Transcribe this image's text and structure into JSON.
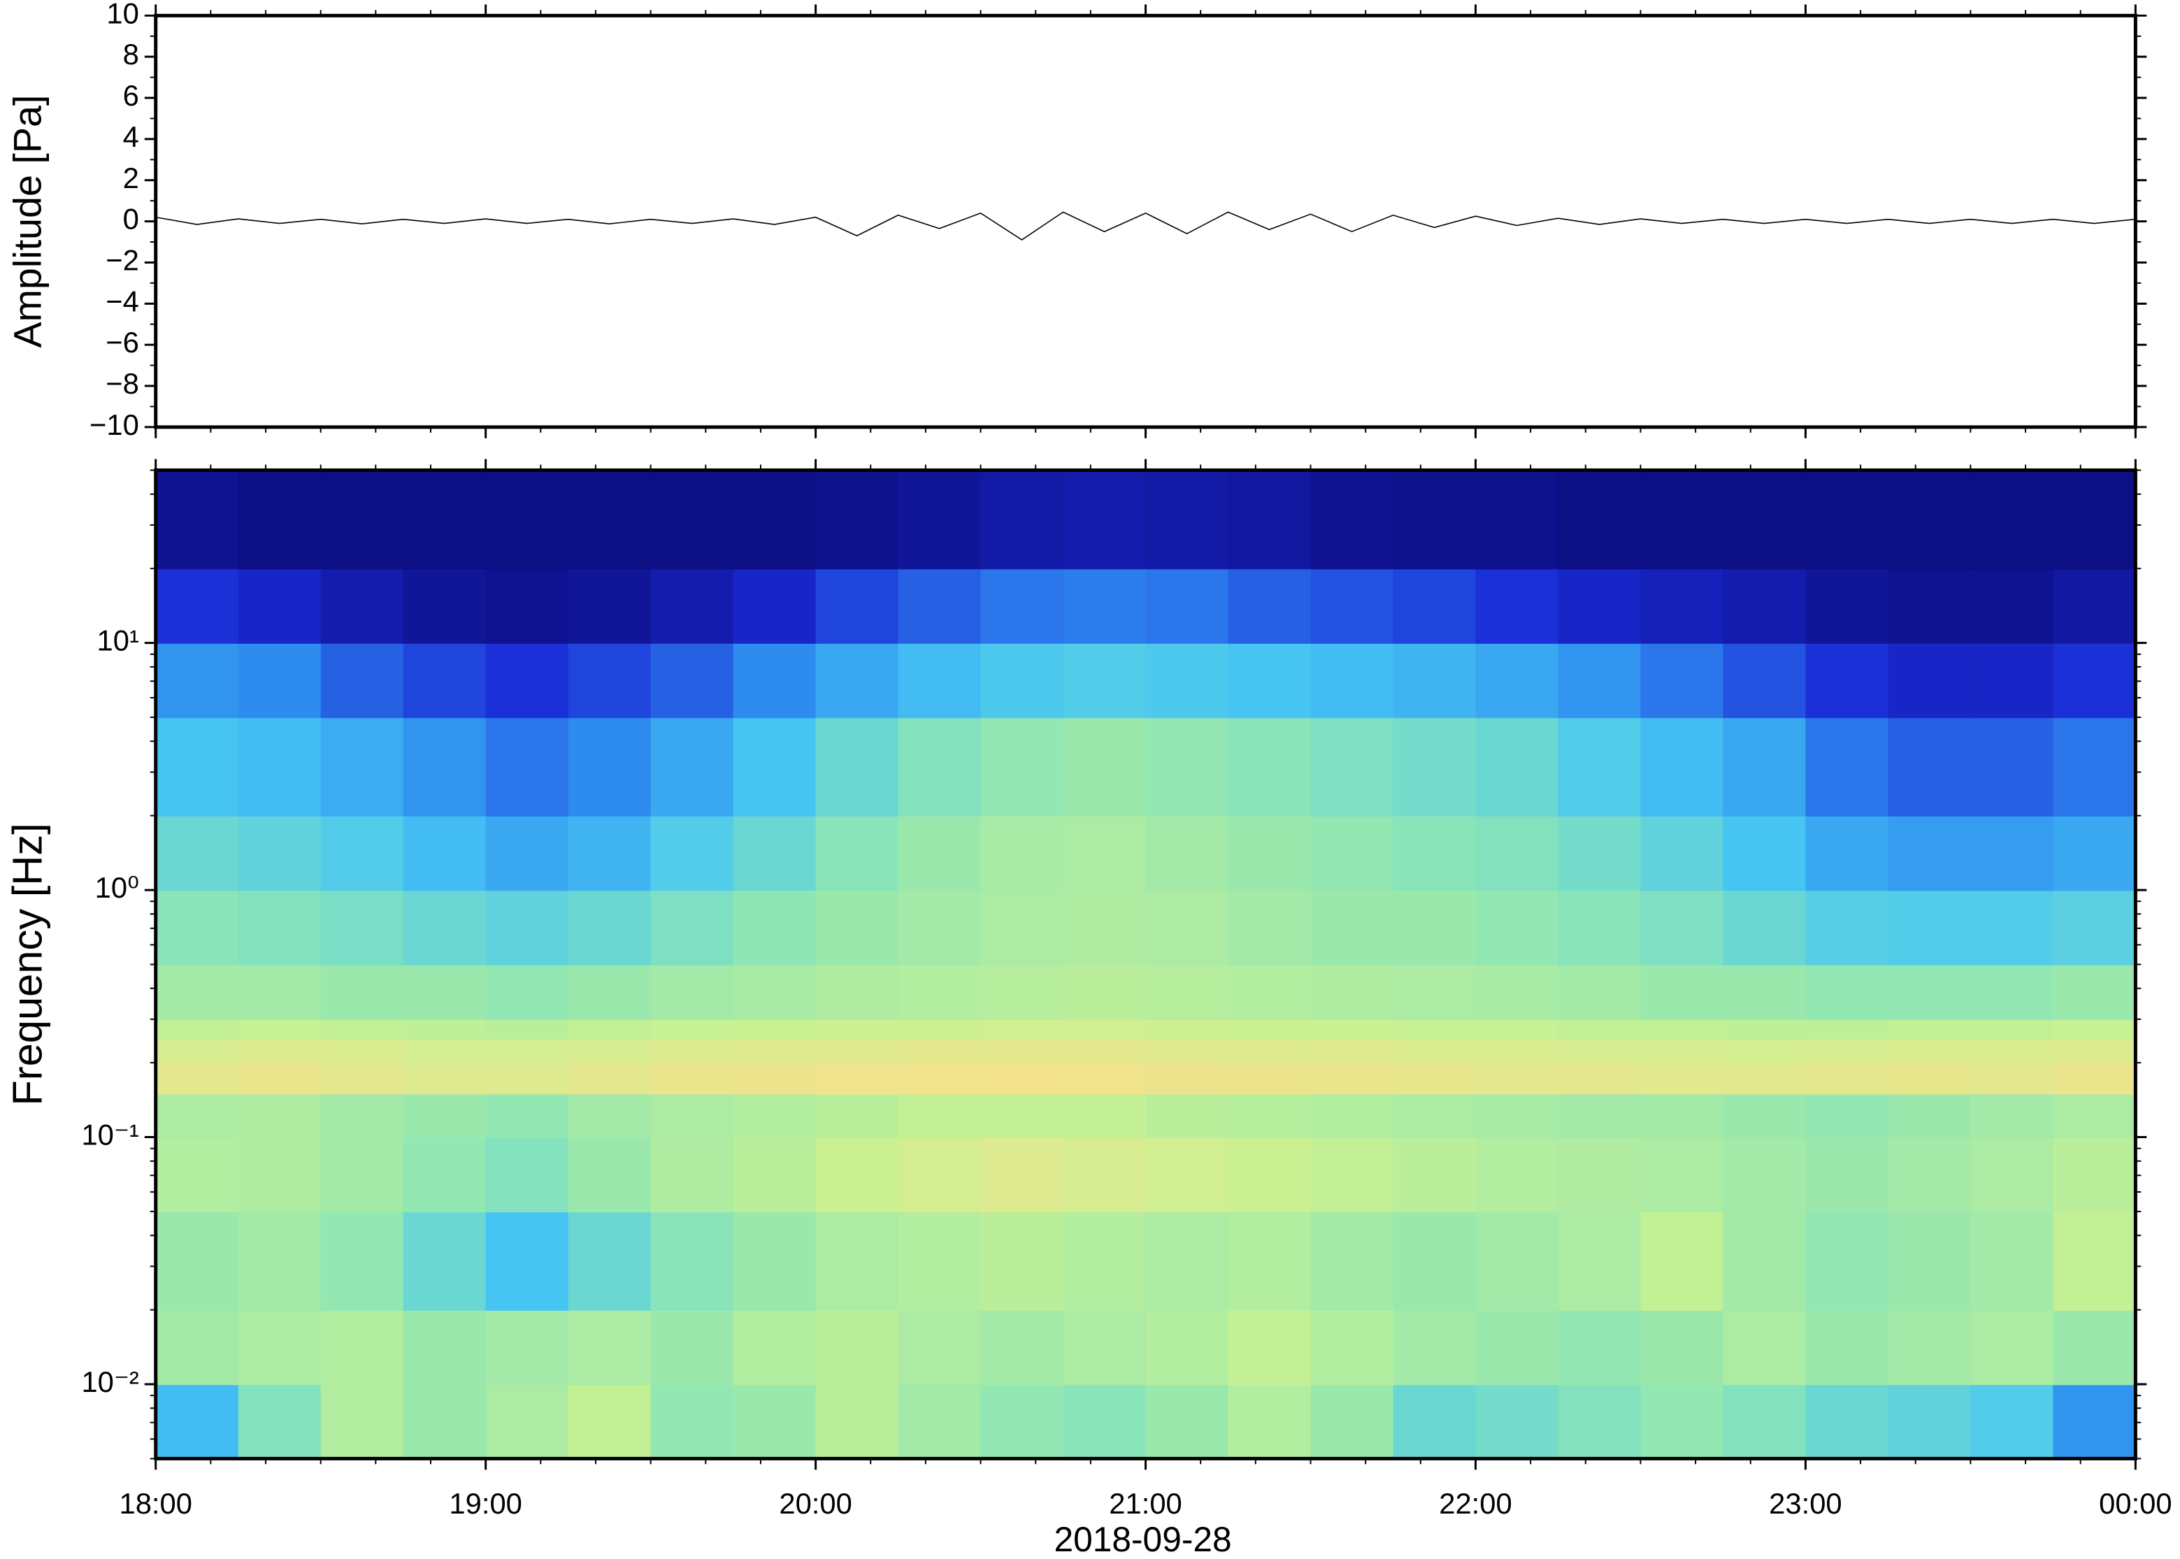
{
  "chart_data": [
    {
      "type": "line",
      "ylabel": "Amplitude [Pa]",
      "color": "#000000",
      "x": [
        18,
        18.125,
        18.25,
        18.375,
        18.5,
        18.625,
        18.75,
        18.875,
        19,
        19.125,
        19.25,
        19.375,
        19.5,
        19.625,
        19.75,
        19.875,
        20,
        20.125,
        20.25,
        20.375,
        20.5,
        20.625,
        20.75,
        20.875,
        21,
        21.125,
        21.25,
        21.375,
        21.5,
        21.625,
        21.75,
        21.875,
        22,
        22.125,
        22.25,
        22.375,
        22.5,
        22.625,
        22.75,
        22.875,
        23,
        23.125,
        23.25,
        23.375,
        23.5,
        23.625,
        23.75,
        23.875,
        24
      ],
      "values": [
        0.2,
        -0.15,
        0.12,
        -0.1,
        0.1,
        -0.12,
        0.1,
        -0.1,
        0.12,
        -0.1,
        0.1,
        -0.12,
        0.1,
        -0.1,
        0.12,
        -0.15,
        0.2,
        -0.7,
        0.3,
        -0.35,
        0.4,
        -0.9,
        0.45,
        -0.5,
        0.4,
        -0.6,
        0.45,
        -0.4,
        0.35,
        -0.5,
        0.3,
        -0.3,
        0.25,
        -0.2,
        0.15,
        -0.15,
        0.12,
        -0.1,
        0.1,
        -0.1,
        0.1,
        -0.1,
        0.1,
        -0.1,
        0.1,
        -0.1,
        0.1,
        -0.1,
        0.1
      ],
      "xlim": [
        18,
        24
      ],
      "xticks": [
        18,
        19,
        20,
        21,
        22,
        23,
        24
      ],
      "ylim": [
        -10,
        10
      ],
      "yticks": [
        {
          "value": -10,
          "label": "−10"
        },
        {
          "value": -8,
          "label": "−8"
        },
        {
          "value": -6,
          "label": "−6"
        },
        {
          "value": -4,
          "label": "−4"
        },
        {
          "value": -2,
          "label": "−2"
        },
        0,
        2,
        4,
        6,
        8,
        10
      ]
    },
    {
      "type": "heatmap",
      "ylabel": "Frequency [Hz]",
      "xlabel": "2018-09-28",
      "log_y": true,
      "x_bins": [
        18,
        18.25,
        18.5,
        18.75,
        19,
        19.25,
        19.5,
        19.75,
        20,
        20.25,
        20.5,
        20.75,
        21,
        21.25,
        21.5,
        21.75,
        22,
        22.25,
        22.5,
        22.75,
        23,
        23.25,
        23.5,
        23.75,
        24
      ],
      "y_bins": [
        0.005,
        0.01,
        0.02,
        0.05,
        0.1,
        0.15,
        0.2,
        0.25,
        0.3,
        0.5,
        1,
        2,
        5,
        10,
        20,
        50
      ],
      "clim": [
        0,
        1
      ],
      "colormap": [
        "#0b0a78",
        "#1b2bd6",
        "#2f8ff0",
        "#47c7f2",
        "#8fe6b4",
        "#c9f192",
        "#f4e18b",
        "#f6a65e"
      ],
      "values": [
        [
          0.4,
          0.55,
          0.66,
          0.6,
          0.64,
          0.7,
          0.58,
          0.6,
          0.68,
          0.62,
          0.58,
          0.56,
          0.6,
          0.66,
          0.6,
          0.5,
          0.52,
          0.55,
          0.58,
          0.55,
          0.5,
          0.48,
          0.45,
          0.3
        ],
        [
          0.62,
          0.64,
          0.66,
          0.6,
          0.62,
          0.64,
          0.6,
          0.66,
          0.68,
          0.64,
          0.62,
          0.64,
          0.66,
          0.7,
          0.66,
          0.62,
          0.6,
          0.58,
          0.6,
          0.64,
          0.6,
          0.62,
          0.64,
          0.6
        ],
        [
          0.6,
          0.62,
          0.58,
          0.5,
          0.42,
          0.5,
          0.56,
          0.6,
          0.64,
          0.66,
          0.68,
          0.66,
          0.64,
          0.66,
          0.62,
          0.6,
          0.62,
          0.64,
          0.7,
          0.62,
          0.58,
          0.6,
          0.62,
          0.7
        ],
        [
          0.66,
          0.65,
          0.62,
          0.58,
          0.55,
          0.6,
          0.65,
          0.68,
          0.72,
          0.75,
          0.78,
          0.76,
          0.74,
          0.72,
          0.7,
          0.68,
          0.66,
          0.65,
          0.64,
          0.62,
          0.6,
          0.62,
          0.64,
          0.68
        ],
        [
          0.64,
          0.65,
          0.62,
          0.6,
          0.58,
          0.62,
          0.64,
          0.66,
          0.68,
          0.7,
          0.7,
          0.7,
          0.68,
          0.67,
          0.66,
          0.64,
          0.63,
          0.62,
          0.62,
          0.6,
          0.58,
          0.6,
          0.62,
          0.64
        ],
        [
          0.8,
          0.82,
          0.8,
          0.78,
          0.78,
          0.8,
          0.82,
          0.83,
          0.84,
          0.84,
          0.85,
          0.84,
          0.83,
          0.83,
          0.82,
          0.81,
          0.8,
          0.8,
          0.79,
          0.79,
          0.8,
          0.81,
          0.8,
          0.82
        ],
        [
          0.76,
          0.78,
          0.77,
          0.75,
          0.75,
          0.76,
          0.78,
          0.78,
          0.79,
          0.8,
          0.8,
          0.8,
          0.79,
          0.78,
          0.78,
          0.77,
          0.77,
          0.76,
          0.76,
          0.75,
          0.76,
          0.77,
          0.77,
          0.78
        ],
        [
          0.7,
          0.71,
          0.7,
          0.69,
          0.68,
          0.7,
          0.71,
          0.72,
          0.73,
          0.73,
          0.74,
          0.74,
          0.73,
          0.72,
          0.72,
          0.71,
          0.71,
          0.7,
          0.7,
          0.69,
          0.69,
          0.7,
          0.7,
          0.71
        ],
        [
          0.62,
          0.62,
          0.6,
          0.6,
          0.58,
          0.6,
          0.62,
          0.63,
          0.65,
          0.66,
          0.67,
          0.68,
          0.67,
          0.66,
          0.65,
          0.64,
          0.63,
          0.62,
          0.6,
          0.6,
          0.58,
          0.58,
          0.58,
          0.6
        ],
        [
          0.56,
          0.55,
          0.53,
          0.5,
          0.48,
          0.5,
          0.54,
          0.57,
          0.6,
          0.62,
          0.64,
          0.65,
          0.64,
          0.62,
          0.6,
          0.6,
          0.58,
          0.56,
          0.54,
          0.5,
          0.46,
          0.45,
          0.45,
          0.47
        ],
        [
          0.5,
          0.48,
          0.45,
          0.4,
          0.35,
          0.38,
          0.45,
          0.5,
          0.56,
          0.6,
          0.63,
          0.64,
          0.62,
          0.6,
          0.58,
          0.56,
          0.55,
          0.52,
          0.48,
          0.42,
          0.35,
          0.32,
          0.32,
          0.35
        ],
        [
          0.42,
          0.4,
          0.36,
          0.3,
          0.25,
          0.28,
          0.35,
          0.42,
          0.5,
          0.55,
          0.58,
          0.6,
          0.58,
          0.56,
          0.54,
          0.52,
          0.5,
          0.45,
          0.4,
          0.35,
          0.25,
          0.22,
          0.22,
          0.25
        ],
        [
          0.3,
          0.28,
          0.22,
          0.18,
          0.15,
          0.18,
          0.22,
          0.28,
          0.35,
          0.4,
          0.44,
          0.45,
          0.44,
          0.42,
          0.4,
          0.38,
          0.35,
          0.3,
          0.25,
          0.2,
          0.15,
          0.12,
          0.12,
          0.15
        ],
        [
          0.15,
          0.12,
          0.08,
          0.05,
          0.04,
          0.05,
          0.08,
          0.12,
          0.18,
          0.22,
          0.25,
          0.26,
          0.25,
          0.22,
          0.2,
          0.18,
          0.15,
          0.12,
          0.1,
          0.08,
          0.05,
          0.04,
          0.04,
          0.06
        ],
        [
          0.04,
          0.02,
          0.02,
          0.02,
          0.02,
          0.02,
          0.02,
          0.02,
          0.03,
          0.05,
          0.07,
          0.08,
          0.07,
          0.06,
          0.04,
          0.03,
          0.03,
          0.02,
          0.02,
          0.02,
          0.02,
          0.02,
          0.02,
          0.02
        ]
      ],
      "xlim": [
        18,
        24
      ],
      "xticks": [
        {
          "value": 18,
          "label": "18:00"
        },
        {
          "value": 19,
          "label": "19:00"
        },
        {
          "value": 20,
          "label": "20:00"
        },
        {
          "value": 21,
          "label": "21:00"
        },
        {
          "value": 22,
          "label": "22:00"
        },
        {
          "value": 23,
          "label": "23:00"
        },
        {
          "value": 24,
          "label": "00:00"
        }
      ],
      "ylim": [
        0.005,
        50
      ],
      "yticks": [
        {
          "value": 0.01,
          "label": "10⁻²"
        },
        {
          "value": 0.1,
          "label": "10⁻¹"
        },
        {
          "value": 1,
          "label": "10⁰"
        },
        {
          "value": 10,
          "label": "10¹"
        }
      ]
    }
  ]
}
